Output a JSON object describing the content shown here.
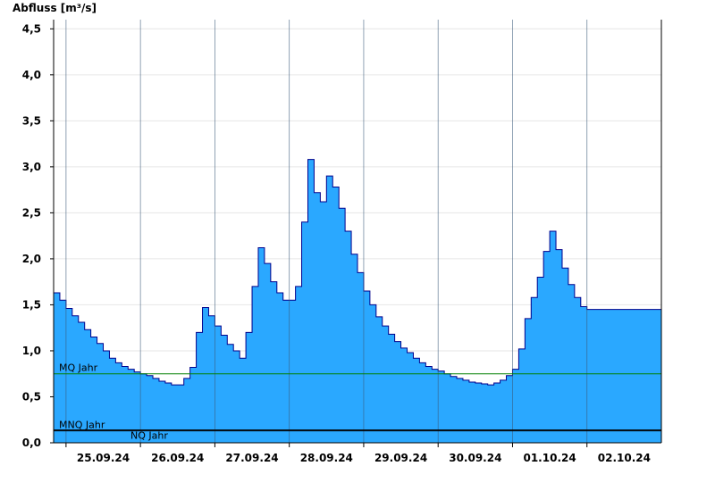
{
  "chart_data": {
    "type": "area",
    "title": "",
    "ylabel": "Abfluss [m³/s]",
    "xlabel": "",
    "ylim": [
      0,
      4.6
    ],
    "xlim": [
      "2024-09-24 20:00",
      "2024-10-03 00:00"
    ],
    "grid": true,
    "colors": {
      "fill": "#2aa8ff",
      "line": "#00008b",
      "mq": "#008000",
      "ref": "#000000"
    },
    "y_ticks": [
      {
        "value": 0,
        "label": "0,0"
      },
      {
        "value": 0.5,
        "label": "0,5"
      },
      {
        "value": 1,
        "label": "1,0"
      },
      {
        "value": 1.5,
        "label": "1,5"
      },
      {
        "value": 2,
        "label": "2,0"
      },
      {
        "value": 2.5,
        "label": "2,5"
      },
      {
        "value": 3,
        "label": "3,0"
      },
      {
        "value": 3.5,
        "label": "3,5"
      },
      {
        "value": 4,
        "label": "4,0"
      },
      {
        "value": 4.5,
        "label": "4,5"
      }
    ],
    "x_ticks": [
      {
        "date": "2024-09-25 12:00",
        "label": "25.09.24"
      },
      {
        "date": "2024-09-26 12:00",
        "label": "26.09.24"
      },
      {
        "date": "2024-09-27 12:00",
        "label": "27.09.24"
      },
      {
        "date": "2024-09-28 12:00",
        "label": "28.09.24"
      },
      {
        "date": "2024-09-29 12:00",
        "label": "29.09.24"
      },
      {
        "date": "2024-09-30 12:00",
        "label": "30.09.24"
      },
      {
        "date": "2024-10-01 12:00",
        "label": "01.10.24"
      },
      {
        "date": "2024-10-02 12:00",
        "label": "02.10.24"
      }
    ],
    "day_lines": [
      "2024-09-25 00:00",
      "2024-09-26 00:00",
      "2024-09-27 00:00",
      "2024-09-28 00:00",
      "2024-09-29 00:00",
      "2024-09-30 00:00",
      "2024-10-01 00:00",
      "2024-10-02 00:00"
    ],
    "reference_lines": [
      {
        "name": "MQ Jahr",
        "value": 0.75
      },
      {
        "name": "MNQ Jahr",
        "value": 0.14
      },
      {
        "name": "NQ Jahr",
        "value": 0.13
      }
    ],
    "series": [
      {
        "x": [
          "2024-09-24 20:00",
          "2024-09-24 22:00",
          "2024-09-25 00:00",
          "2024-09-25 02:00",
          "2024-09-25 04:00",
          "2024-09-25 06:00",
          "2024-09-25 08:00",
          "2024-09-25 10:00",
          "2024-09-25 12:00",
          "2024-09-25 14:00",
          "2024-09-25 16:00",
          "2024-09-25 18:00",
          "2024-09-25 20:00",
          "2024-09-25 22:00",
          "2024-09-26 00:00",
          "2024-09-26 02:00",
          "2024-09-26 04:00",
          "2024-09-26 06:00",
          "2024-09-26 08:00",
          "2024-09-26 10:00",
          "2024-09-26 12:00",
          "2024-09-26 14:00",
          "2024-09-26 16:00",
          "2024-09-26 18:00",
          "2024-09-26 20:00",
          "2024-09-26 22:00",
          "2024-09-27 00:00",
          "2024-09-27 02:00",
          "2024-09-27 04:00",
          "2024-09-27 06:00",
          "2024-09-27 08:00",
          "2024-09-27 10:00",
          "2024-09-27 12:00",
          "2024-09-27 14:00",
          "2024-09-27 16:00",
          "2024-09-27 18:00",
          "2024-09-27 20:00",
          "2024-09-27 22:00",
          "2024-09-28 00:00",
          "2024-09-28 02:00",
          "2024-09-28 04:00",
          "2024-09-28 06:00",
          "2024-09-28 08:00",
          "2024-09-28 10:00",
          "2024-09-28 12:00",
          "2024-09-28 14:00",
          "2024-09-28 16:00",
          "2024-09-28 18:00",
          "2024-09-28 20:00",
          "2024-09-28 22:00",
          "2024-09-29 00:00",
          "2024-09-29 02:00",
          "2024-09-29 04:00",
          "2024-09-29 06:00",
          "2024-09-29 08:00",
          "2024-09-29 10:00",
          "2024-09-29 12:00",
          "2024-09-29 14:00",
          "2024-09-29 16:00",
          "2024-09-29 18:00",
          "2024-09-29 20:00",
          "2024-09-29 22:00",
          "2024-09-30 00:00",
          "2024-09-30 02:00",
          "2024-09-30 04:00",
          "2024-09-30 06:00",
          "2024-09-30 08:00",
          "2024-09-30 10:00",
          "2024-09-30 12:00",
          "2024-09-30 14:00",
          "2024-09-30 16:00",
          "2024-09-30 18:00",
          "2024-09-30 20:00",
          "2024-09-30 22:00",
          "2024-10-01 00:00",
          "2024-10-01 02:00",
          "2024-10-01 04:00",
          "2024-10-01 06:00",
          "2024-10-01 08:00",
          "2024-10-01 10:00",
          "2024-10-01 12:00",
          "2024-10-01 14:00",
          "2024-10-01 16:00",
          "2024-10-01 18:00",
          "2024-10-01 20:00",
          "2024-10-01 22:00",
          "2024-10-02 00:00",
          "2024-10-02 02:00",
          "2024-10-02 04:00",
          "2024-10-02 06:00",
          "2024-10-02 08:00",
          "2024-10-02 10:00",
          "2024-10-02 12:00",
          "2024-10-02 14:00",
          "2024-10-02 16:00",
          "2024-10-02 18:00",
          "2024-10-02 20:00",
          "2024-10-02 22:00",
          "2024-10-03 00:00"
        ],
        "values": [
          1.63,
          1.55,
          1.46,
          1.38,
          1.31,
          1.23,
          1.15,
          1.08,
          1.0,
          0.92,
          0.87,
          0.83,
          0.8,
          0.77,
          0.75,
          0.73,
          0.7,
          0.67,
          0.65,
          0.63,
          0.63,
          0.7,
          0.82,
          1.2,
          1.47,
          1.38,
          1.27,
          1.17,
          1.07,
          1.0,
          0.92,
          1.2,
          1.7,
          2.12,
          1.95,
          1.75,
          1.63,
          1.55,
          1.55,
          1.7,
          2.4,
          3.08,
          2.72,
          2.62,
          2.9,
          2.78,
          2.55,
          2.3,
          2.05,
          1.85,
          1.65,
          1.5,
          1.37,
          1.27,
          1.18,
          1.1,
          1.03,
          0.98,
          0.92,
          0.87,
          0.83,
          0.8,
          0.78,
          0.75,
          0.72,
          0.7,
          0.68,
          0.66,
          0.65,
          0.64,
          0.63,
          0.65,
          0.68,
          0.73,
          0.8,
          1.02,
          1.35,
          1.58,
          1.8,
          2.08,
          2.3,
          2.1,
          1.9,
          1.72,
          1.58,
          1.48,
          1.45,
          1.45,
          1.45,
          1.45,
          1.45,
          1.45,
          1.45,
          1.45,
          1.45,
          1.45,
          1.45,
          1.45,
          1.45
        ]
      }
    ]
  }
}
